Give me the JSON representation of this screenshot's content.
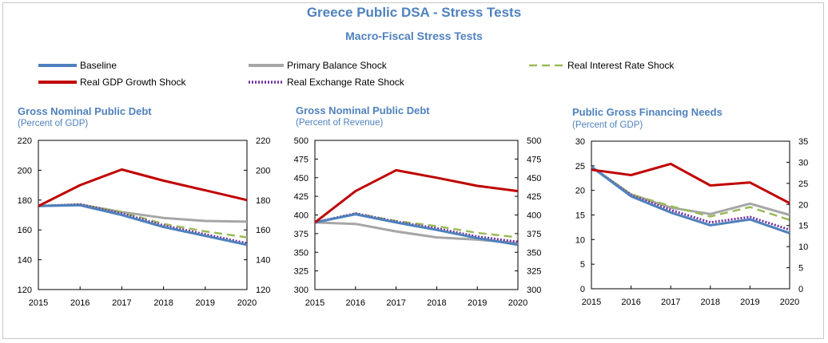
{
  "page": {
    "title": "Greece Public DSA - Stress Tests",
    "subtitle": "Macro-Fiscal Stress Tests"
  },
  "legend": [
    {
      "label": "Baseline",
      "color": "#4f81bd",
      "style": "solid"
    },
    {
      "label": "Primary Balance Shock",
      "color": "#a6a6a6",
      "style": "solid"
    },
    {
      "label": "Real Interest Rate Shock",
      "color": "#9bbb59",
      "style": "dashed"
    },
    {
      "label": "Real GDP Growth Shock",
      "color": "#c00000",
      "style": "solid"
    },
    {
      "label": "Real Exchange Rate Shock",
      "color": "#7030a0",
      "style": "dotted"
    }
  ],
  "chart_data": [
    {
      "type": "line",
      "title": "Gross Nominal Public Debt",
      "subtitle": "(Percent of GDP)",
      "x": [
        "2015",
        "2016",
        "2017",
        "2018",
        "2019",
        "2020"
      ],
      "ylim": [
        120,
        220
      ],
      "yticks": [
        120,
        140,
        160,
        180,
        200,
        220
      ],
      "y2lim": [
        120,
        220
      ],
      "y2ticks": [
        120,
        140,
        160,
        180,
        200,
        220
      ],
      "grid": false,
      "series": [
        {
          "name": "Primary Balance Shock",
          "values": [
            176,
            177,
            172,
            168,
            166,
            165.5
          ]
        },
        {
          "name": "Real Interest Rate Shock",
          "values": [
            176,
            177,
            172,
            164,
            159,
            155
          ]
        },
        {
          "name": "Real Exchange Rate Shock",
          "values": [
            176,
            177,
            171,
            163,
            157,
            151
          ]
        },
        {
          "name": "Baseline",
          "values": [
            176,
            176.5,
            170,
            162,
            156,
            150
          ]
        },
        {
          "name": "Real GDP Growth Shock",
          "values": [
            176,
            190,
            200.5,
            193,
            186.5,
            180
          ]
        }
      ]
    },
    {
      "type": "line",
      "title": "Gross Nominal Public Debt",
      "subtitle": "(Percent of Revenue)",
      "x": [
        "2015",
        "2016",
        "2017",
        "2018",
        "2019",
        "2020"
      ],
      "ylim": [
        300,
        500
      ],
      "yticks": [
        300,
        325,
        350,
        375,
        400,
        425,
        450,
        475,
        500
      ],
      "y2lim": [
        300,
        500
      ],
      "y2ticks": [
        300,
        325,
        350,
        375,
        400,
        425,
        450,
        475,
        500
      ],
      "grid": false,
      "series": [
        {
          "name": "Primary Balance Shock",
          "values": [
            390,
            388,
            378,
            370,
            367,
            362
          ]
        },
        {
          "name": "Real Interest Rate Shock",
          "values": [
            390,
            402,
            392,
            385,
            376,
            370
          ]
        },
        {
          "name": "Real Exchange Rate Shock",
          "values": [
            390,
            402,
            391,
            382,
            371,
            364
          ]
        },
        {
          "name": "Baseline",
          "values": [
            390,
            401,
            390,
            380,
            369,
            360
          ]
        },
        {
          "name": "Real GDP Growth Shock",
          "values": [
            390,
            432,
            460,
            450,
            439,
            432
          ]
        }
      ]
    },
    {
      "type": "line",
      "title": "Public Gross Financing Needs",
      "subtitle": "(Percent of GDP)",
      "x": [
        "2015",
        "2016",
        "2017",
        "2018",
        "2019",
        "2020"
      ],
      "ylim": [
        0,
        30
      ],
      "yticks": [
        0,
        5,
        10,
        15,
        20,
        25,
        30
      ],
      "y2lim": [
        0,
        35
      ],
      "y2ticks": [
        0,
        5,
        10,
        15,
        20,
        25,
        30,
        35
      ],
      "grid": false,
      "series": [
        {
          "name": "Primary Balance Shock",
          "values": [
            24.8,
            19.2,
            16.5,
            15.2,
            17.3,
            15.0
          ]
        },
        {
          "name": "Real Interest Rate Shock",
          "values": [
            24.8,
            19.2,
            16.8,
            14.7,
            16.6,
            14.0
          ]
        },
        {
          "name": "Real Exchange Rate Shock",
          "values": [
            24.8,
            19.0,
            16.0,
            13.5,
            14.6,
            12.0
          ]
        },
        {
          "name": "Baseline",
          "values": [
            24.8,
            18.8,
            15.5,
            12.9,
            14.1,
            11.3
          ]
        },
        {
          "name": "Real GDP Growth Shock",
          "values": [
            24.2,
            23.1,
            25.4,
            21.0,
            21.6,
            17.4
          ]
        }
      ]
    }
  ]
}
